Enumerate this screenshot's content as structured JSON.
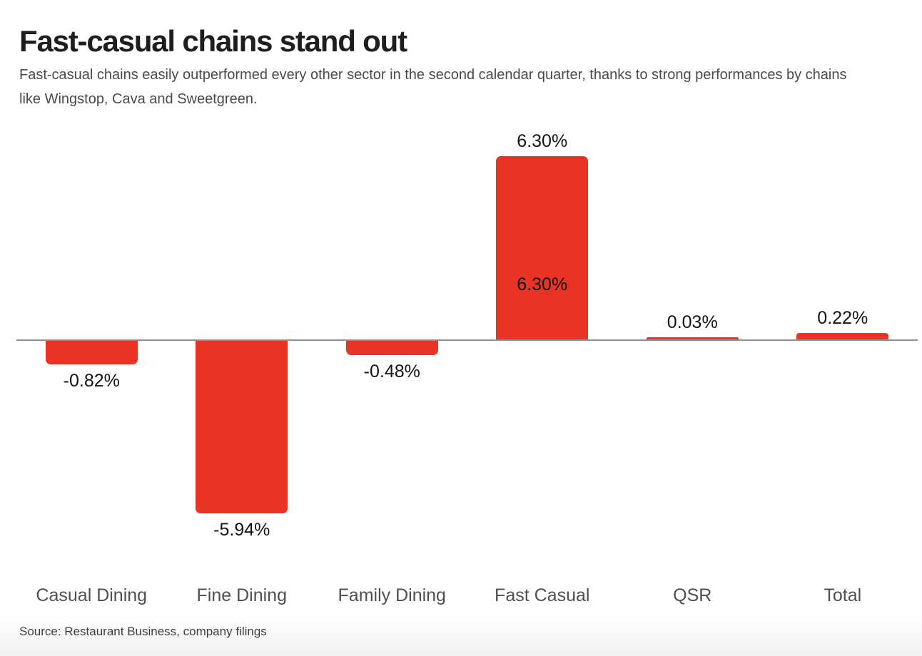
{
  "header": {
    "title": "Fast-casual chains stand out",
    "subtitle": "Fast-casual chains easily outperformed every other sector in the second calendar quarter, thanks to strong performances by chains like Wingstop, Cava and Sweetgreen."
  },
  "chart_data": {
    "type": "bar",
    "title": "Fast-casual chains stand out",
    "categories": [
      "Casual Dining",
      "Fine Dining",
      "Family Dining",
      "Fast Casual",
      "QSR",
      "Total"
    ],
    "values": [
      -0.82,
      -5.94,
      -0.48,
      6.3,
      0.03,
      0.22
    ],
    "value_labels": [
      "-0.82%",
      "-5.94%",
      "-0.48%",
      "6.30%",
      "0.03%",
      "0.22%"
    ],
    "inner_annotation": {
      "category": "Fast Casual",
      "label": "6.30%"
    },
    "xlabel": "",
    "ylabel": "",
    "ylim": [
      -7.5,
      7.5
    ],
    "grid": false,
    "legend": "none",
    "bar_color": "#e93425",
    "baseline_color": "#919191",
    "value_label_color": "#131313",
    "category_label_color": "#4f4f4f"
  },
  "footer": {
    "source": "Source: Restaurant Business, company filings"
  }
}
